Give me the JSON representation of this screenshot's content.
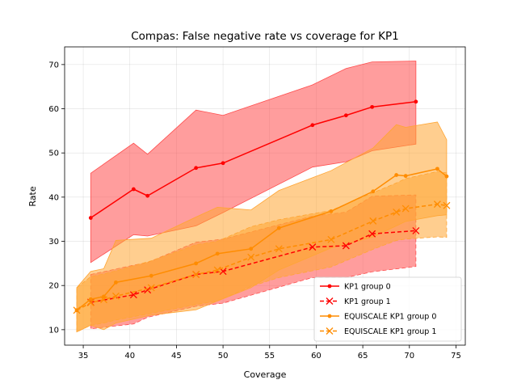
{
  "chart_data": {
    "type": "line",
    "title": "Compas: False negative rate vs coverage for KP1",
    "xlabel": "Coverage",
    "ylabel": "Rate",
    "xlim": [
      33,
      76
    ],
    "ylim": [
      6.5,
      74
    ],
    "xticks": [
      35,
      40,
      45,
      50,
      55,
      60,
      65,
      70,
      75
    ],
    "yticks": [
      10,
      20,
      30,
      40,
      50,
      60,
      70
    ],
    "grid": true,
    "legend_position": "lower-right",
    "series": [
      {
        "name": "KP1 group 0",
        "color": "#ff0000",
        "band_color": "#ff4d4d",
        "linestyle": "solid",
        "marker": "dot",
        "x": [
          35.8,
          40.4,
          41.9,
          47.1,
          50.0,
          59.6,
          63.2,
          66.0,
          70.7
        ],
        "y": [
          35.3,
          41.8,
          40.3,
          46.6,
          47.7,
          56.3,
          58.5,
          60.4,
          61.6
        ],
        "band_lower": [
          25.2,
          31.5,
          31.2,
          33.5,
          36.5,
          46.8,
          48.0,
          50.5,
          52.0
        ],
        "band_upper": [
          45.4,
          52.2,
          49.7,
          59.7,
          58.5,
          65.4,
          69.1,
          70.6,
          70.8
        ]
      },
      {
        "name": "KP1 group 1",
        "color": "#ff0000",
        "band_color": "#ff4d4d",
        "linestyle": "dashed",
        "marker": "x",
        "x": [
          35.8,
          40.4,
          41.9,
          47.1,
          50.0,
          59.6,
          63.2,
          66.0,
          70.7
        ],
        "y": [
          16.2,
          17.9,
          19.0,
          22.5,
          23.2,
          28.7,
          29.0,
          31.7,
          32.4
        ],
        "band_lower": [
          10.2,
          11.3,
          12.8,
          15.3,
          16.0,
          21.8,
          21.8,
          23.1,
          24.3
        ],
        "band_upper": [
          22.5,
          24.6,
          25.2,
          29.8,
          30.5,
          35.7,
          36.6,
          40.2,
          40.5
        ]
      },
      {
        "name": "EQUISCALE KP1 group 0",
        "color": "#ff8c00",
        "band_color": "#ffa533",
        "linestyle": "solid",
        "marker": "dot",
        "x": [
          34.3,
          35.8,
          37.2,
          38.5,
          42.3,
          47.1,
          49.4,
          53.0,
          56.0,
          61.6,
          66.1,
          68.6,
          69.6,
          73.0,
          74.0
        ],
        "y": [
          14.4,
          16.9,
          17.5,
          20.7,
          22.2,
          25.0,
          27.2,
          28.3,
          33.0,
          36.8,
          41.3,
          45.0,
          44.8,
          46.4,
          44.7
        ],
        "band_lower": [
          9.5,
          11.0,
          10.0,
          11.5,
          13.3,
          14.5,
          16.5,
          19.5,
          23.5,
          28.5,
          31.0,
          33.5,
          34.5,
          35.8,
          36.0
        ],
        "band_upper": [
          19.5,
          23.2,
          23.8,
          30.2,
          30.7,
          35.5,
          37.7,
          37.1,
          41.5,
          46.0,
          51.1,
          56.4,
          55.8,
          57.0,
          53.0
        ]
      },
      {
        "name": "EQUISCALE KP1 group 1",
        "color": "#ff8c00",
        "band_color": "#ffa533",
        "linestyle": "dashed",
        "marker": "x",
        "x": [
          34.3,
          35.8,
          37.2,
          38.5,
          42.3,
          47.1,
          49.4,
          53.0,
          56.0,
          61.6,
          66.1,
          68.6,
          69.6,
          73.0,
          74.0
        ],
        "y": [
          14.4,
          16.1,
          16.8,
          17.6,
          19.5,
          22.5,
          23.5,
          26.4,
          28.3,
          30.4,
          34.6,
          36.6,
          37.4,
          38.4,
          38.1
        ],
        "band_lower": [
          9.5,
          11.0,
          11.5,
          12.2,
          13.7,
          15.7,
          16.5,
          19.8,
          21.8,
          24.2,
          28.2,
          30.2,
          30.5,
          31.0,
          30.9
        ],
        "band_upper": [
          19.5,
          22.0,
          22.6,
          23.3,
          25.6,
          29.2,
          30.0,
          33.3,
          34.9,
          37.0,
          41.0,
          43.2,
          44.2,
          45.8,
          45.5
        ]
      }
    ]
  }
}
